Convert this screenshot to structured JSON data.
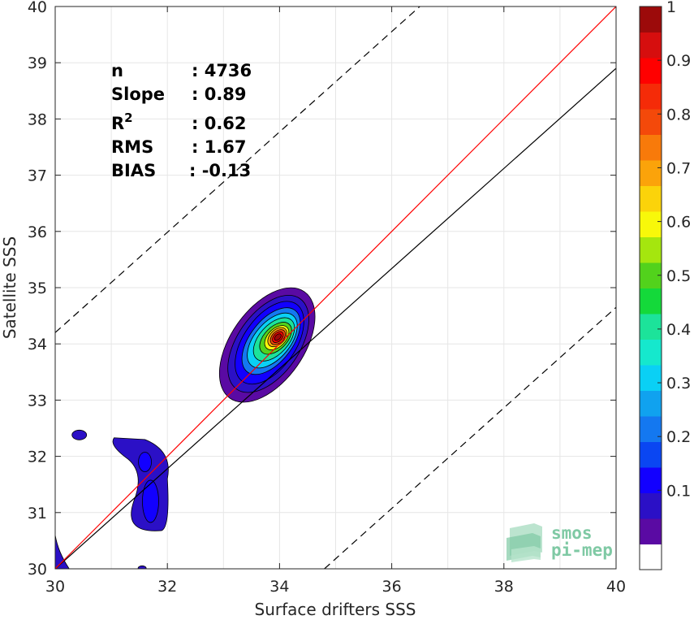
{
  "chart_data": {
    "type": "heatmap",
    "subtype": "density-contour scatter comparison",
    "xlabel": "Surface drifters SSS",
    "ylabel": "Satellite SSS",
    "xlim": [
      30,
      40
    ],
    "ylim": [
      30,
      40
    ],
    "x_ticks": [
      "30",
      "32",
      "34",
      "36",
      "38",
      "40"
    ],
    "y_ticks": [
      "30",
      "31",
      "32",
      "33",
      "34",
      "35",
      "36",
      "37",
      "38",
      "39",
      "40"
    ],
    "grid": true,
    "stats": [
      {
        "label": "n",
        "value": ": 4736"
      },
      {
        "label": "Slope",
        "value": ": 0.89"
      },
      {
        "label": "R",
        "sup": "2",
        "value": ": 0.62"
      },
      {
        "label": "RMS",
        "value": ": 1.67"
      },
      {
        "label": "BIAS",
        "value": ": -0.13"
      }
    ],
    "lines": {
      "identity": {
        "color": "#ff0000",
        "x": [
          30,
          40
        ],
        "y": [
          30,
          40
        ]
      },
      "regression": {
        "color": "#000000",
        "x": [
          30,
          40
        ],
        "y": [
          30.0,
          38.9
        ]
      },
      "upper_bound": {
        "color": "#000000",
        "dash": true,
        "x": [
          30,
          36.5
        ],
        "y": [
          34.2,
          40
        ]
      },
      "lower_bound": {
        "color": "#000000",
        "dash": true,
        "x": [
          34.8,
          40
        ],
        "y": [
          30,
          34.65
        ]
      }
    },
    "density_clusters": [
      {
        "name": "main",
        "center_x": 33.97,
        "center_y": 34.12,
        "peak": 1.0
      },
      {
        "name": "fresh",
        "center_x": 31.7,
        "center_y": 31.5,
        "peak": 0.2
      },
      {
        "name": "small-blob",
        "center_x": 30.43,
        "center_y": 32.38,
        "peak": 0.1
      }
    ],
    "colorbar": {
      "min": 0,
      "max": 1,
      "ticks": [
        "0.1",
        "0.2",
        "0.3",
        "0.4",
        "0.5",
        "0.6",
        "0.7",
        "0.8",
        "0.9",
        "1"
      ],
      "colors": [
        "#ffffff",
        "#5a0aa3",
        "#2b10c6",
        "#1200ff",
        "#0a46f2",
        "#1478f0",
        "#10a2ef",
        "#0ad0f5",
        "#15e8cd",
        "#1ce39a",
        "#14d93a",
        "#52d21c",
        "#a5e60e",
        "#f8f80a",
        "#fbd30a",
        "#fba30a",
        "#f87a0a",
        "#f4490a",
        "#f52b08",
        "#ff0000",
        "#d60e0e",
        "#9c0a0a"
      ]
    }
  },
  "logo": {
    "line1": "smos",
    "line2": "pi-mep",
    "color": "#7fc9a4"
  }
}
